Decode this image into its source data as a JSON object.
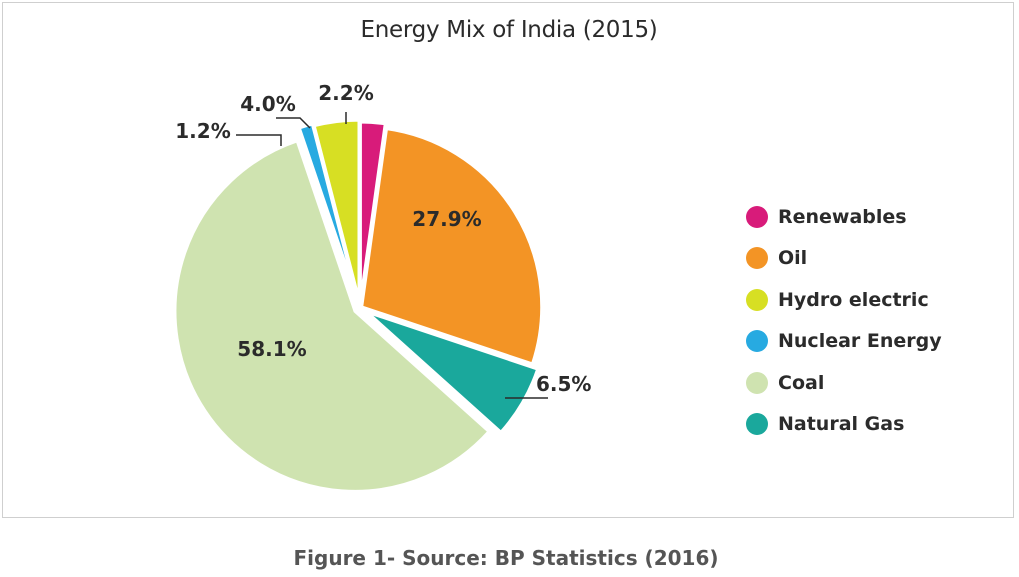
{
  "chart_data": {
    "type": "pie",
    "title": "Energy Mix of India (2015)",
    "caption": "Figure 1- Source: BP Statistics (2016)",
    "legend_position": "right",
    "slices": [
      {
        "label": "Renewables",
        "value": 2.2,
        "value_label": "2.2%",
        "color": "#d81b7a"
      },
      {
        "label": "Oil",
        "value": 27.9,
        "value_label": "27.9%",
        "color": "#f39425"
      },
      {
        "label": "Natural Gas",
        "value": 6.5,
        "value_label": "6.5%",
        "color": "#1aa89c"
      },
      {
        "label": "Coal",
        "value": 58.1,
        "value_label": "58.1%",
        "color": "#cfe3b0"
      },
      {
        "label": "Nuclear Energy",
        "value": 1.2,
        "value_label": "1.2%",
        "color": "#27aae1"
      },
      {
        "label": "Hydro electric",
        "value": 4.0,
        "value_label": "4.0%",
        "color": "#d7df23"
      }
    ],
    "legend": [
      {
        "label": "Renewables",
        "color": "#d81b7a"
      },
      {
        "label": "Oil",
        "color": "#f39425"
      },
      {
        "label": "Hydro electric",
        "color": "#d7df23"
      },
      {
        "label": "Nuclear Energy",
        "color": "#27aae1"
      },
      {
        "label": "Coal",
        "color": "#cfe3b0"
      },
      {
        "label": "Natural Gas",
        "color": "#1aa89c"
      }
    ]
  }
}
